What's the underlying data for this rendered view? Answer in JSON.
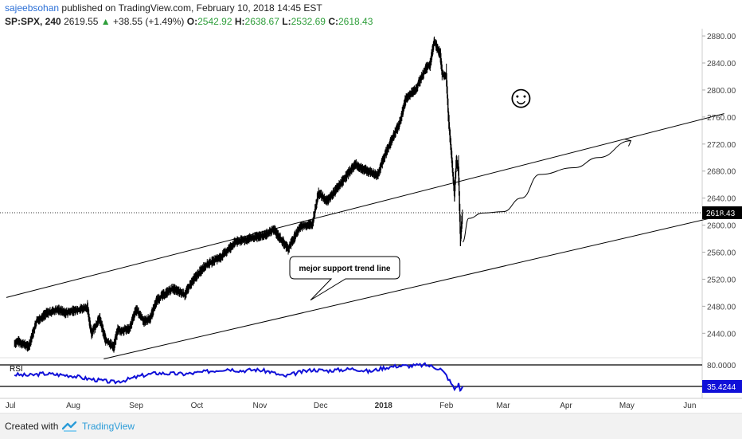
{
  "header": {
    "author": "sajeebsohan",
    "published_text": "published on TradingView.com, February 10, 2018 14:45 EST",
    "symbol": "SP:SPX, 240",
    "last": "2619.55",
    "change": "+38.55 (+1.49%)",
    "open_label": "O:",
    "open": "2542.92",
    "high_label": "H:",
    "high": "2638.67",
    "low_label": "L:",
    "low": "2532.69",
    "close_label": "C:",
    "close": "2618.43"
  },
  "annotation": {
    "callout_text": "mejor support trend line",
    "smiley": "☺"
  },
  "footer": {
    "created_with": "Created with",
    "brand": "TradingView"
  },
  "colors": {
    "rsi_line": "#1010d8",
    "price_bars": "#000000",
    "brand": "#2b9cd8",
    "up": "#2e9e3a"
  },
  "chart_data": {
    "type": "ohlc-bar",
    "price_axis": {
      "ticks": [
        2440,
        2480,
        2520,
        2560,
        2600,
        2640,
        2680,
        2720,
        2760,
        2800,
        2840,
        2880
      ],
      "ylim": [
        2405,
        2886
      ],
      "last_price_label": "2618.43",
      "last_price": 2618.43
    },
    "time_axis": {
      "labels": [
        "Jul",
        "Aug",
        "Sep",
        "Oct",
        "Nov",
        "Dec",
        "2018",
        "Feb",
        "Mar",
        "Apr",
        "May",
        "Jun"
      ],
      "bold_label": "2018"
    },
    "price_series": {
      "name": "",
      "points": [
        [
          "2017-07-03",
          2425
        ],
        [
          "2017-07-05",
          2428
        ],
        [
          "2017-07-10",
          2420
        ],
        [
          "2017-07-14",
          2458
        ],
        [
          "2017-07-19",
          2470
        ],
        [
          "2017-07-25",
          2475
        ],
        [
          "2017-07-28",
          2470
        ],
        [
          "2017-08-03",
          2475
        ],
        [
          "2017-08-08",
          2478
        ],
        [
          "2017-08-10",
          2440
        ],
        [
          "2017-08-14",
          2462
        ],
        [
          "2017-08-17",
          2430
        ],
        [
          "2017-08-21",
          2420
        ],
        [
          "2017-08-23",
          2445
        ],
        [
          "2017-08-25",
          2443
        ],
        [
          "2017-08-29",
          2448
        ],
        [
          "2017-09-01",
          2475
        ],
        [
          "2017-09-05",
          2458
        ],
        [
          "2017-09-08",
          2462
        ],
        [
          "2017-09-11",
          2488
        ],
        [
          "2017-09-14",
          2496
        ],
        [
          "2017-09-19",
          2506
        ],
        [
          "2017-09-25",
          2497
        ],
        [
          "2017-09-29",
          2518
        ],
        [
          "2017-10-05",
          2540
        ],
        [
          "2017-10-13",
          2553
        ],
        [
          "2017-10-20",
          2575
        ],
        [
          "2017-10-27",
          2580
        ],
        [
          "2017-11-03",
          2585
        ],
        [
          "2017-11-08",
          2593
        ],
        [
          "2017-11-15",
          2565
        ],
        [
          "2017-11-21",
          2598
        ],
        [
          "2017-11-27",
          2602
        ],
        [
          "2017-11-30",
          2648
        ],
        [
          "2017-12-04",
          2635
        ],
        [
          "2017-12-08",
          2650
        ],
        [
          "2017-12-13",
          2670
        ],
        [
          "2017-12-18",
          2690
        ],
        [
          "2017-12-22",
          2683
        ],
        [
          "2017-12-29",
          2674
        ],
        [
          "2018-01-03",
          2713
        ],
        [
          "2018-01-09",
          2751
        ],
        [
          "2018-01-12",
          2787
        ],
        [
          "2018-01-17",
          2802
        ],
        [
          "2018-01-22",
          2832
        ],
        [
          "2018-01-24",
          2838
        ],
        [
          "2018-01-26",
          2872
        ],
        [
          "2018-01-29",
          2853
        ],
        [
          "2018-01-30",
          2823
        ],
        [
          "2018-02-01",
          2822
        ],
        [
          "2018-02-02",
          2762
        ],
        [
          "2018-02-05",
          2648
        ],
        [
          "2018-02-06",
          2695
        ],
        [
          "2018-02-07",
          2681
        ],
        [
          "2018-02-08",
          2581
        ],
        [
          "2018-02-09",
          2619
        ]
      ]
    },
    "channel_upper": {
      "points": [
        [
          "2017-06-29",
          2493
        ],
        [
          "2018-06-18",
          2765
        ]
      ]
    },
    "channel_lower": {
      "label": "mejor support trend line",
      "points": [
        [
          "2017-08-16",
          2402
        ],
        [
          "2018-06-18",
          2615
        ]
      ]
    },
    "projection": {
      "points": [
        [
          "2018-02-09",
          2575
        ],
        [
          "2018-02-12",
          2610
        ],
        [
          "2018-02-19",
          2618
        ],
        [
          "2018-03-01",
          2620
        ],
        [
          "2018-03-10",
          2640
        ],
        [
          "2018-03-19",
          2675
        ],
        [
          "2018-04-05",
          2685
        ],
        [
          "2018-04-17",
          2700
        ],
        [
          "2018-05-03",
          2725
        ]
      ]
    },
    "rsi": {
      "label": "RSI",
      "level_upper": 80.0,
      "level_upper_label": "80.0000",
      "level_lower_label": "35.4244",
      "last": 35.4244,
      "points": [
        [
          "2017-07-03",
          60
        ],
        [
          "2017-07-10",
          58
        ],
        [
          "2017-07-17",
          62
        ],
        [
          "2017-07-24",
          60
        ],
        [
          "2017-07-31",
          58
        ],
        [
          "2017-08-07",
          52
        ],
        [
          "2017-08-14",
          48
        ],
        [
          "2017-08-21",
          44
        ],
        [
          "2017-08-28",
          50
        ],
        [
          "2017-09-04",
          58
        ],
        [
          "2017-09-11",
          63
        ],
        [
          "2017-09-18",
          62
        ],
        [
          "2017-09-25",
          61
        ],
        [
          "2017-10-02",
          64
        ],
        [
          "2017-10-09",
          68
        ],
        [
          "2017-10-16",
          72
        ],
        [
          "2017-10-23",
          68
        ],
        [
          "2017-10-30",
          70
        ],
        [
          "2017-11-06",
          66
        ],
        [
          "2017-11-13",
          56
        ],
        [
          "2017-11-20",
          64
        ],
        [
          "2017-11-27",
          70
        ],
        [
          "2017-12-04",
          68
        ],
        [
          "2017-12-11",
          70
        ],
        [
          "2017-12-18",
          72
        ],
        [
          "2017-12-25",
          66
        ],
        [
          "2018-01-01",
          74
        ],
        [
          "2018-01-08",
          78
        ],
        [
          "2018-01-15",
          78
        ],
        [
          "2018-01-22",
          80
        ],
        [
          "2018-01-29",
          72
        ],
        [
          "2018-02-01",
          58
        ],
        [
          "2018-02-05",
          30
        ],
        [
          "2018-02-07",
          40
        ],
        [
          "2018-02-08",
          26
        ],
        [
          "2018-02-09",
          35.4
        ]
      ]
    }
  }
}
